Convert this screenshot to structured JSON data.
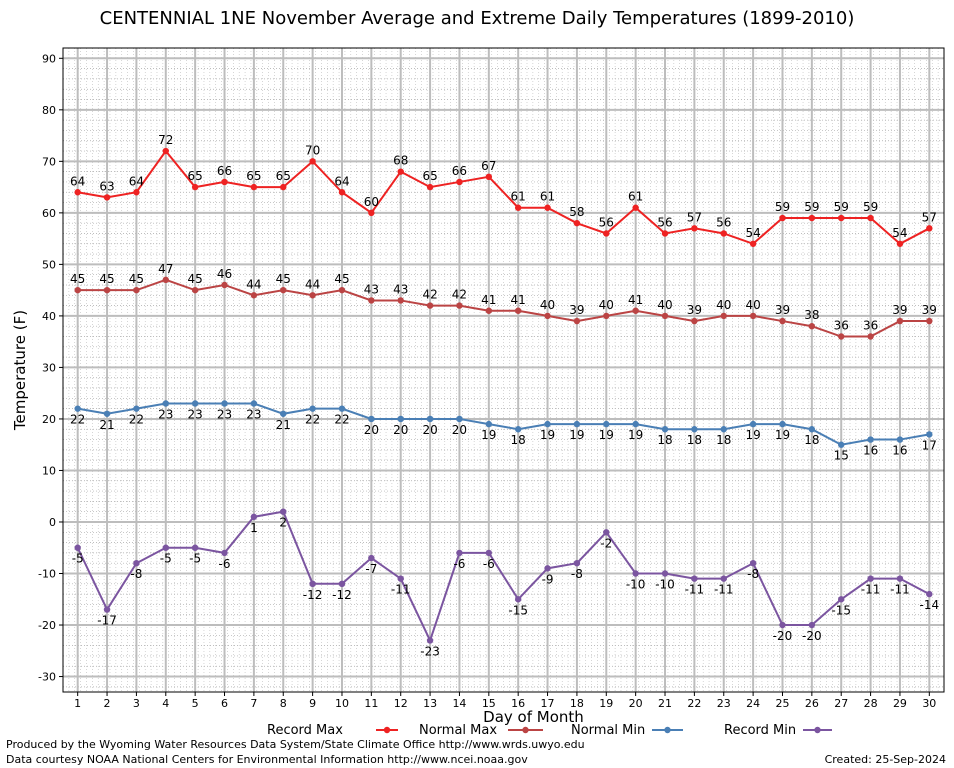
{
  "title": "CENTENNIAL 1NE November Average and Extreme Daily Temperatures (1899-2010)",
  "footer": {
    "produced_by": "Produced by the Wyoming Water Resources Data System/State Climate Office http://www.wrds.uwyo.edu",
    "data_courtesy": "Data courtesy NOAA National Centers for Environmental Information http://www.ncei.noaa.gov",
    "created": "Created: 25-Sep-2024"
  },
  "chart_data": {
    "type": "line",
    "title": "CENTENNIAL 1NE November Average and Extreme Daily Temperatures (1899-2010)",
    "xlabel": "Day of Month",
    "ylabel": "Temperature (F)",
    "xlim": [
      1,
      30
    ],
    "ylim": [
      -33,
      92
    ],
    "y_ticks": [
      -30,
      -20,
      -10,
      0,
      10,
      20,
      30,
      40,
      50,
      60,
      70,
      80,
      90
    ],
    "grid": true,
    "legend_position": "bottom",
    "x": [
      1,
      2,
      3,
      4,
      5,
      6,
      7,
      8,
      9,
      10,
      11,
      12,
      13,
      14,
      15,
      16,
      17,
      18,
      19,
      20,
      21,
      22,
      23,
      24,
      25,
      26,
      27,
      28,
      29,
      30
    ],
    "series": [
      {
        "name": "Record Max",
        "color": "#ee2222",
        "values": [
          64,
          63,
          64,
          72,
          65,
          66,
          65,
          65,
          70,
          64,
          60,
          68,
          65,
          66,
          67,
          61,
          61,
          58,
          56,
          61,
          56,
          57,
          56,
          54,
          59,
          59,
          59,
          59,
          54,
          57
        ]
      },
      {
        "name": "Normal Max",
        "color": "#bb4444",
        "values": [
          45,
          45,
          45,
          47,
          45,
          46,
          44,
          45,
          44,
          45,
          43,
          43,
          42,
          42,
          41,
          41,
          40,
          39,
          40,
          41,
          40,
          39,
          40,
          40,
          39,
          38,
          36,
          36,
          39,
          39
        ]
      },
      {
        "name": "Normal Min",
        "color": "#4a7fb5",
        "values": [
          22,
          21,
          22,
          23,
          23,
          23,
          23,
          21,
          22,
          22,
          20,
          20,
          20,
          20,
          19,
          18,
          19,
          19,
          19,
          19,
          18,
          18,
          18,
          19,
          19,
          18,
          15,
          16,
          16,
          17
        ]
      },
      {
        "name": "Record Min",
        "color": "#7b55a0",
        "values": [
          -5,
          -17,
          -8,
          -5,
          -5,
          -6,
          1,
          2,
          -12,
          -12,
          -7,
          -11,
          -23,
          -6,
          -6,
          -15,
          -9,
          -8,
          -2,
          -10,
          -10,
          -11,
          -11,
          -8,
          -20,
          -20,
          -15,
          -11,
          -11,
          -14
        ]
      }
    ]
  }
}
